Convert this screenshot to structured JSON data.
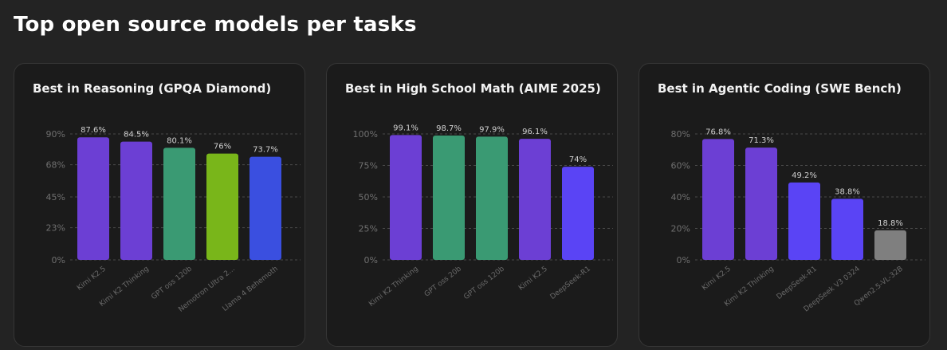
{
  "page": {
    "title": "Top open source models per tasks"
  },
  "chart_data": [
    {
      "type": "bar",
      "title": "Best in Reasoning (GPQA Diamond)",
      "categories": [
        "Kimi K2.5",
        "Kimi K2 Thinking",
        "GPT oss 120b",
        "Nemotron Ultra 2...",
        "Llama 4 Behemoth"
      ],
      "values": [
        87.6,
        84.5,
        80.1,
        76,
        73.7
      ],
      "value_labels": [
        "87.6%",
        "84.5%",
        "80.1%",
        "76%",
        "73.7%"
      ],
      "colors": [
        "#6c3fd4",
        "#6c3fd4",
        "#3a9a73",
        "#79b61a",
        "#3a4fe0"
      ],
      "yticks": [
        0,
        23,
        45,
        68,
        90
      ],
      "ytick_labels": [
        "0%",
        "23%",
        "45%",
        "68%",
        "90%"
      ],
      "ylim": [
        0,
        90
      ],
      "grid": true
    },
    {
      "type": "bar",
      "title": "Best in High School Math (AIME 2025)",
      "categories": [
        "Kimi K2 Thinking",
        "GPT oss 20b",
        "GPT oss 120b",
        "Kimi K2.5",
        "DeepSeek-R1"
      ],
      "values": [
        99.1,
        98.7,
        97.9,
        96.1,
        74
      ],
      "value_labels": [
        "99.1%",
        "98.7%",
        "97.9%",
        "96.1%",
        "74%"
      ],
      "colors": [
        "#6c3fd4",
        "#3a9a73",
        "#3a9a73",
        "#6c3fd4",
        "#5a44f5"
      ],
      "yticks": [
        0,
        25,
        50,
        75,
        100
      ],
      "ytick_labels": [
        "0%",
        "25%",
        "50%",
        "75%",
        "100%"
      ],
      "ylim": [
        0,
        100
      ],
      "grid": true
    },
    {
      "type": "bar",
      "title": "Best in Agentic Coding (SWE Bench)",
      "categories": [
        "Kimi K2.5",
        "Kimi K2 Thinking",
        "DeepSeek-R1",
        "DeepSeek V3 0324",
        "Qwen2.5-VL-32B"
      ],
      "values": [
        76.8,
        71.3,
        49.2,
        38.8,
        18.8
      ],
      "value_labels": [
        "76.8%",
        "71.3%",
        "49.2%",
        "38.8%",
        "18.8%"
      ],
      "colors": [
        "#6c3fd4",
        "#6c3fd4",
        "#5a44f5",
        "#5a44f5",
        "#7f7f7f"
      ],
      "yticks": [
        0,
        20,
        40,
        60,
        80
      ],
      "ytick_labels": [
        "0%",
        "20%",
        "40%",
        "60%",
        "80%"
      ],
      "ylim": [
        0,
        80
      ],
      "grid": true
    }
  ]
}
